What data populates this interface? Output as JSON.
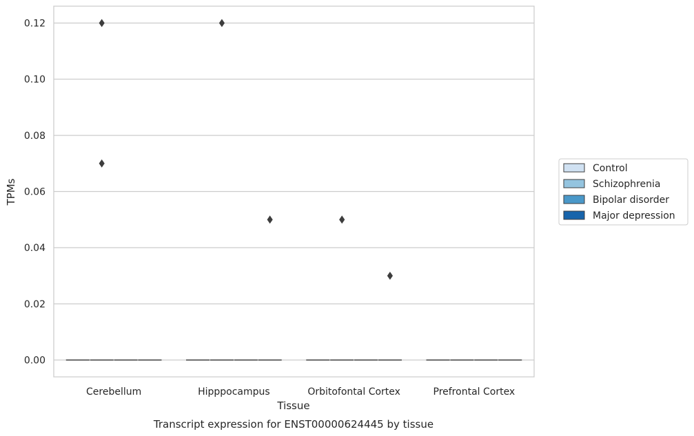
{
  "chart_data": {
    "type": "box",
    "xlabel": "Tissue",
    "ylabel": "TPMs",
    "caption": "Transcript expression for ENST00000624445 by tissue",
    "ylim": [
      -0.006,
      0.126
    ],
    "yticks": [
      0.0,
      0.02,
      0.04,
      0.06,
      0.08,
      0.1,
      0.12
    ],
    "ytick_labels": [
      "0.00",
      "0.02",
      "0.04",
      "0.06",
      "0.08",
      "0.10",
      "0.12"
    ],
    "categories": [
      "Cerebellum",
      "Hipppocampus",
      "Orbitofontal Cortex",
      "Prefrontal Cortex"
    ],
    "grid": "horizontal",
    "legend_position": "right",
    "series": [
      {
        "name": "Control",
        "color": "#d0e1f2",
        "boxes": [
          {
            "median": 0,
            "q1": 0,
            "q3": 0,
            "outliers": []
          },
          {
            "median": 0,
            "q1": 0,
            "q3": 0,
            "outliers": []
          },
          {
            "median": 0,
            "q1": 0,
            "q3": 0,
            "outliers": []
          },
          {
            "median": 0,
            "q1": 0,
            "q3": 0,
            "outliers": []
          }
        ]
      },
      {
        "name": "Schizophrenia",
        "color": "#94c4df",
        "boxes": [
          {
            "median": 0,
            "q1": 0,
            "q3": 0,
            "outliers": [
              0.12,
              0.07
            ]
          },
          {
            "median": 0,
            "q1": 0,
            "q3": 0,
            "outliers": [
              0.12
            ]
          },
          {
            "median": 0,
            "q1": 0,
            "q3": 0,
            "outliers": [
              0.05
            ]
          },
          {
            "median": 0,
            "q1": 0,
            "q3": 0,
            "outliers": []
          }
        ]
      },
      {
        "name": "Bipolar disorder",
        "color": "#4a98c9",
        "boxes": [
          {
            "median": 0,
            "q1": 0,
            "q3": 0,
            "outliers": []
          },
          {
            "median": 0,
            "q1": 0,
            "q3": 0,
            "outliers": []
          },
          {
            "median": 0,
            "q1": 0,
            "q3": 0,
            "outliers": []
          },
          {
            "median": 0,
            "q1": 0,
            "q3": 0,
            "outliers": []
          }
        ]
      },
      {
        "name": "Major depression",
        "color": "#1764ab",
        "boxes": [
          {
            "median": 0,
            "q1": 0,
            "q3": 0,
            "outliers": []
          },
          {
            "median": 0,
            "q1": 0,
            "q3": 0,
            "outliers": [
              0.05
            ]
          },
          {
            "median": 0,
            "q1": 0,
            "q3": 0,
            "outliers": [
              0.03
            ]
          },
          {
            "median": 0,
            "q1": 0,
            "q3": 0,
            "outliers": []
          }
        ]
      }
    ]
  }
}
